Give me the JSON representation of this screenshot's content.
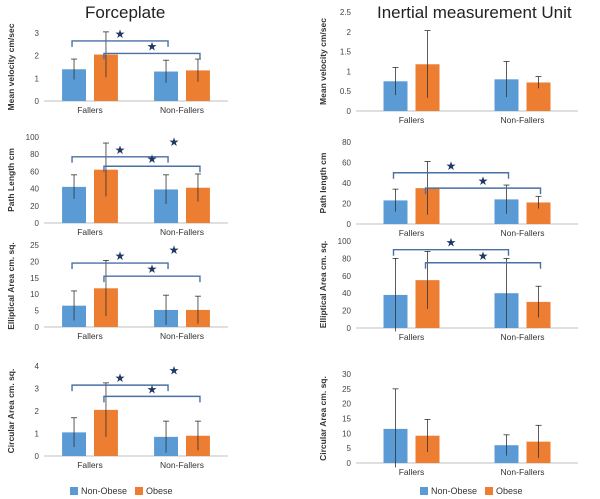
{
  "titles": {
    "left": "Forceplate",
    "right": "Inertial measurement Unit"
  },
  "legend": [
    {
      "name": "Non-Obese",
      "color": "#5B9BD5"
    },
    {
      "name": "Obese",
      "color": "#ED7D31"
    }
  ],
  "colors": {
    "non_obese": "#5B9BD5",
    "obese": "#ED7D31",
    "bracket": "#4a6fa5",
    "star": "#1f3864",
    "axis": "#bfbfbf",
    "error": "#333333"
  },
  "star_symbol": "★",
  "chart_data": [
    {
      "id": "fp-velocity",
      "type": "bar",
      "column": "left",
      "ylabel": "Mean velocity cm/sec",
      "ylim": [
        0,
        3
      ],
      "yticks": [
        "0",
        "1",
        "2",
        "3"
      ],
      "categories": [
        "Fallers",
        "Non-Fallers"
      ],
      "series": [
        {
          "name": "Non-Obese",
          "values": [
            1.4,
            1.3
          ],
          "errors": [
            0.45,
            0.5
          ]
        },
        {
          "name": "Obese",
          "values": [
            2.05,
            1.35
          ],
          "errors": [
            1.0,
            0.5
          ]
        }
      ],
      "brackets": [
        {
          "from": "Fallers|Non-Obese",
          "to": "Non-Fallers|Non-Obese",
          "level": 2.65
        },
        {
          "from": "Fallers|Obese",
          "to": "Non-Fallers|Obese",
          "level": 2.1
        }
      ]
    },
    {
      "id": "fp-path",
      "type": "bar",
      "column": "left",
      "ylabel": "Path Length cm",
      "ylim": [
        0,
        100
      ],
      "yticks": [
        "0",
        "20",
        "40",
        "60",
        "80",
        "100"
      ],
      "categories": [
        "Fallers",
        "Non-Fallers"
      ],
      "series": [
        {
          "name": "Non-Obese",
          "values": [
            42,
            39
          ],
          "errors": [
            14,
            17
          ]
        },
        {
          "name": "Obese",
          "values": [
            62,
            41
          ],
          "errors": [
            31,
            16
          ]
        }
      ],
      "brackets": [
        {
          "from": "Fallers|Non-Obese",
          "to": "Non-Fallers|Non-Obese",
          "level": 77
        },
        {
          "from": "Fallers|Obese",
          "to": "Non-Fallers|Obese",
          "level": 66
        }
      ],
      "extra_stars": [
        {
          "cat": "Non-Fallers",
          "level": 94
        }
      ]
    },
    {
      "id": "fp-elliptical",
      "type": "bar",
      "column": "left",
      "ylabel": "Elliptical Area cm. sq.",
      "ylim": [
        0,
        25
      ],
      "yticks": [
        "0",
        "5",
        "10",
        "15",
        "20",
        "25"
      ],
      "categories": [
        "Fallers",
        "Non-Fallers"
      ],
      "series": [
        {
          "name": "Non-Obese",
          "values": [
            6.5,
            5.2
          ],
          "errors": [
            4.5,
            4.5
          ]
        },
        {
          "name": "Obese",
          "values": [
            11.8,
            5.2
          ],
          "errors": [
            8.5,
            4.2
          ]
        }
      ],
      "brackets": [
        {
          "from": "Fallers|Non-Obese",
          "to": "Non-Fallers|Non-Obese",
          "level": 19.5
        },
        {
          "from": "Fallers|Obese",
          "to": "Non-Fallers|Obese",
          "level": 15.5
        }
      ],
      "extra_stars": [
        {
          "cat": "Non-Fallers",
          "level": 23.5
        }
      ]
    },
    {
      "id": "fp-circular",
      "type": "bar",
      "column": "left",
      "ylabel": "Circular Area cm. sq.",
      "ylim": [
        0,
        4
      ],
      "yticks": [
        "0",
        "1",
        "2",
        "3",
        "4"
      ],
      "categories": [
        "Fallers",
        "Non-Fallers"
      ],
      "series": [
        {
          "name": "Non-Obese",
          "values": [
            1.05,
            0.85
          ],
          "errors": [
            0.65,
            0.7
          ]
        },
        {
          "name": "Obese",
          "values": [
            2.05,
            0.9
          ],
          "errors": [
            1.2,
            0.65
          ]
        }
      ],
      "brackets": [
        {
          "from": "Fallers|Non-Obese",
          "to": "Non-Fallers|Non-Obese",
          "level": 3.15
        },
        {
          "from": "Fallers|Obese",
          "to": "Non-Fallers|Obese",
          "level": 2.65
        }
      ],
      "extra_stars": [
        {
          "cat": "Non-Fallers",
          "level": 3.8
        }
      ]
    },
    {
      "id": "imu-velocity",
      "type": "bar",
      "column": "right",
      "ylabel": "Mean velocity cm/sec",
      "ylim": [
        0,
        2.5
      ],
      "yticks": [
        "0",
        "0.5",
        "1",
        "1.5",
        "2",
        "2.5"
      ],
      "categories": [
        "Fallers",
        "Non-Fallers"
      ],
      "series": [
        {
          "name": "Non-Obese",
          "values": [
            0.75,
            0.8
          ],
          "errors": [
            0.35,
            0.45
          ]
        },
        {
          "name": "Obese",
          "values": [
            1.18,
            0.72
          ],
          "errors": [
            0.85,
            0.15
          ]
        }
      ],
      "brackets": []
    },
    {
      "id": "imu-path",
      "type": "bar",
      "column": "right",
      "ylabel": "Path length cm",
      "ylim": [
        0,
        80
      ],
      "yticks": [
        "0",
        "20",
        "40",
        "60",
        "80"
      ],
      "categories": [
        "Fallers",
        "Non-Fallers"
      ],
      "series": [
        {
          "name": "Non-Obese",
          "values": [
            23,
            24
          ],
          "errors": [
            11,
            14
          ]
        },
        {
          "name": "Obese",
          "values": [
            35,
            21
          ],
          "errors": [
            26,
            6
          ]
        }
      ],
      "brackets": [
        {
          "from": "Fallers|Non-Obese",
          "to": "Non-Fallers|Non-Obese",
          "level": 50
        },
        {
          "from": "Fallers|Obese",
          "to": "Non-Fallers|Obese",
          "level": 35
        }
      ]
    },
    {
      "id": "imu-elliptical",
      "type": "bar",
      "column": "right",
      "ylabel": "Elliptical Area cm. sq.",
      "ylim": [
        0,
        100
      ],
      "yticks": [
        "0",
        "20",
        "40",
        "60",
        "80",
        "100"
      ],
      "categories": [
        "Fallers",
        "Non-Fallers"
      ],
      "series": [
        {
          "name": "Non-Obese",
          "values": [
            38,
            40
          ],
          "errors": [
            42,
            40
          ]
        },
        {
          "name": "Obese",
          "values": [
            55,
            30
          ],
          "errors": [
            33,
            18
          ]
        }
      ],
      "brackets": [
        {
          "from": "Fallers|Non-Obese",
          "to": "Non-Fallers|Non-Obese",
          "level": 90
        },
        {
          "from": "Fallers|Obese",
          "to": "Non-Fallers|Obese",
          "level": 75
        }
      ]
    },
    {
      "id": "imu-circular",
      "type": "bar",
      "column": "right",
      "ylabel": "Circular Area cm. sq.",
      "ylim": [
        0,
        30
      ],
      "yticks": [
        "0",
        "5",
        "10",
        "15",
        "20",
        "25",
        "30"
      ],
      "categories": [
        "Fallers",
        "Non-Fallers"
      ],
      "series": [
        {
          "name": "Non-Obese",
          "values": [
            11.5,
            6.0
          ],
          "errors": [
            13.5,
            3.5
          ]
        },
        {
          "name": "Obese",
          "values": [
            9.2,
            7.2
          ],
          "errors": [
            5.5,
            5.5
          ]
        }
      ],
      "brackets": []
    }
  ]
}
